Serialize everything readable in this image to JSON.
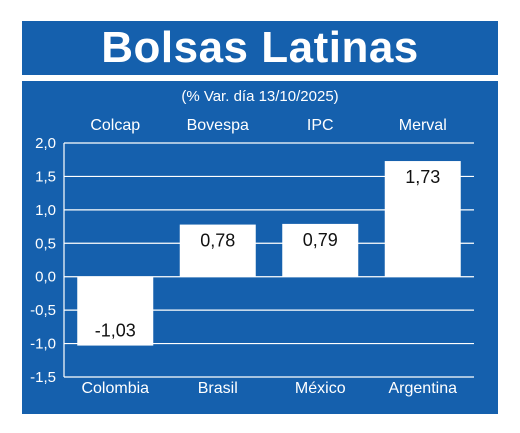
{
  "chart_data": {
    "type": "bar",
    "title": "Bolsas Latinas",
    "subtitle": "(% Var. día 13/10/2025)",
    "indices": [
      "Colcap",
      "Bovespa",
      "IPC",
      "Merval"
    ],
    "categories": [
      "Colombia",
      "Brasil",
      "México",
      "Argentina"
    ],
    "values": [
      -1.03,
      0.78,
      0.79,
      1.73
    ],
    "value_labels": [
      "-1,03",
      "0,78",
      "0,79",
      "1,73"
    ],
    "yticks": [
      2.0,
      1.5,
      1.0,
      0.5,
      0.0,
      -0.5,
      -1.0,
      -1.5
    ],
    "ytick_labels": [
      "2,0",
      "1,5",
      "1,0",
      "0,5",
      "0,0",
      "-0,5",
      "-1,0",
      "-1,5"
    ],
    "ylim": [
      -1.5,
      2.0
    ],
    "grid": true,
    "colors": {
      "background": "#1560ad",
      "bar": "#ffffff",
      "grid": "#ffffff",
      "text": "#ffffff",
      "label_text": "#111111"
    }
  }
}
